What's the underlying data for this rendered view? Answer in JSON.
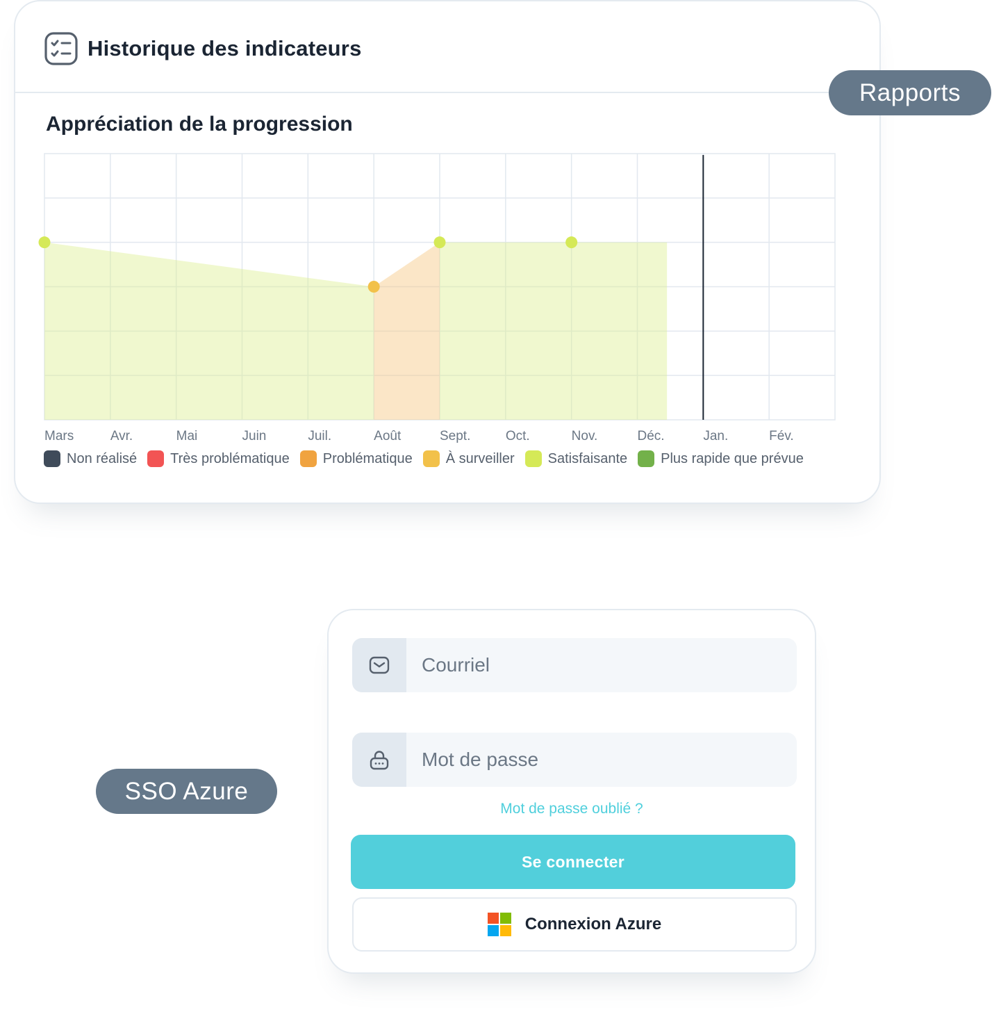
{
  "report": {
    "title": "Historique des indicateurs",
    "chart_title": "Appréciation de la progression"
  },
  "chart_data": {
    "type": "area",
    "title": "Appréciation de la progression",
    "categories": [
      "Mars",
      "Avr.",
      "Mai",
      "Juin",
      "Juil.",
      "Août",
      "Sept.",
      "Oct.",
      "Nov.",
      "Déc.",
      "Jan.",
      "Fév."
    ],
    "ylim": [
      0,
      6
    ],
    "grid": true,
    "current_marker_category": "Jan.",
    "segments": [
      {
        "status": "Satisfaisante",
        "color": "#d5e957",
        "from": [
          "Mars",
          4.0
        ],
        "to": [
          "Août",
          3.0
        ]
      },
      {
        "status": "Problématique",
        "color": "#f0a340",
        "from": [
          "Août",
          3.0
        ],
        "to": [
          "Sept.",
          4.0
        ]
      },
      {
        "status": "Satisfaisante",
        "color": "#d5e957",
        "from": [
          "Sept.",
          4.0
        ],
        "to": [
          "Déc.",
          4.0
        ]
      }
    ],
    "points": [
      {
        "x": "Mars",
        "y": 4.0,
        "status": "Satisfaisante",
        "color": "#d5e957"
      },
      {
        "x": "Août",
        "y": 3.0,
        "status": "À surveiller",
        "color": "#f2c14a"
      },
      {
        "x": "Sept.",
        "y": 4.0,
        "status": "Satisfaisante",
        "color": "#d5e957"
      },
      {
        "x": "Nov.",
        "y": 4.0,
        "status": "Satisfaisante",
        "color": "#d5e957"
      }
    ],
    "legend": [
      {
        "label": "Non réalisé",
        "color": "#3f4b5a"
      },
      {
        "label": "Très problématique",
        "color": "#f25454"
      },
      {
        "label": "Problématique",
        "color": "#f0a340"
      },
      {
        "label": "À surveiller",
        "color": "#f2c14a"
      },
      {
        "label": "Satisfaisante",
        "color": "#d5e957"
      },
      {
        "label": "Plus rapide que prévue",
        "color": "#73b14a"
      }
    ],
    "legend_position": "bottom"
  },
  "pills": {
    "rapports": "Rapports",
    "sso": "SSO Azure"
  },
  "login": {
    "email_placeholder": "Courriel",
    "password_placeholder": "Mot de passe",
    "forgot_label": "Mot de passe oublié ?",
    "login_button": "Se connecter",
    "azure_button": "Connexion Azure"
  },
  "colors": {
    "accent": "#52cfdb",
    "pill": "#65788a",
    "ms_logo": [
      "#f35325",
      "#81bc06",
      "#05a6f0",
      "#ffba08"
    ]
  },
  "icons": {
    "header": "checklist-icon",
    "email": "mail-icon",
    "password": "lock-icon",
    "azure": "microsoft-logo-icon"
  }
}
